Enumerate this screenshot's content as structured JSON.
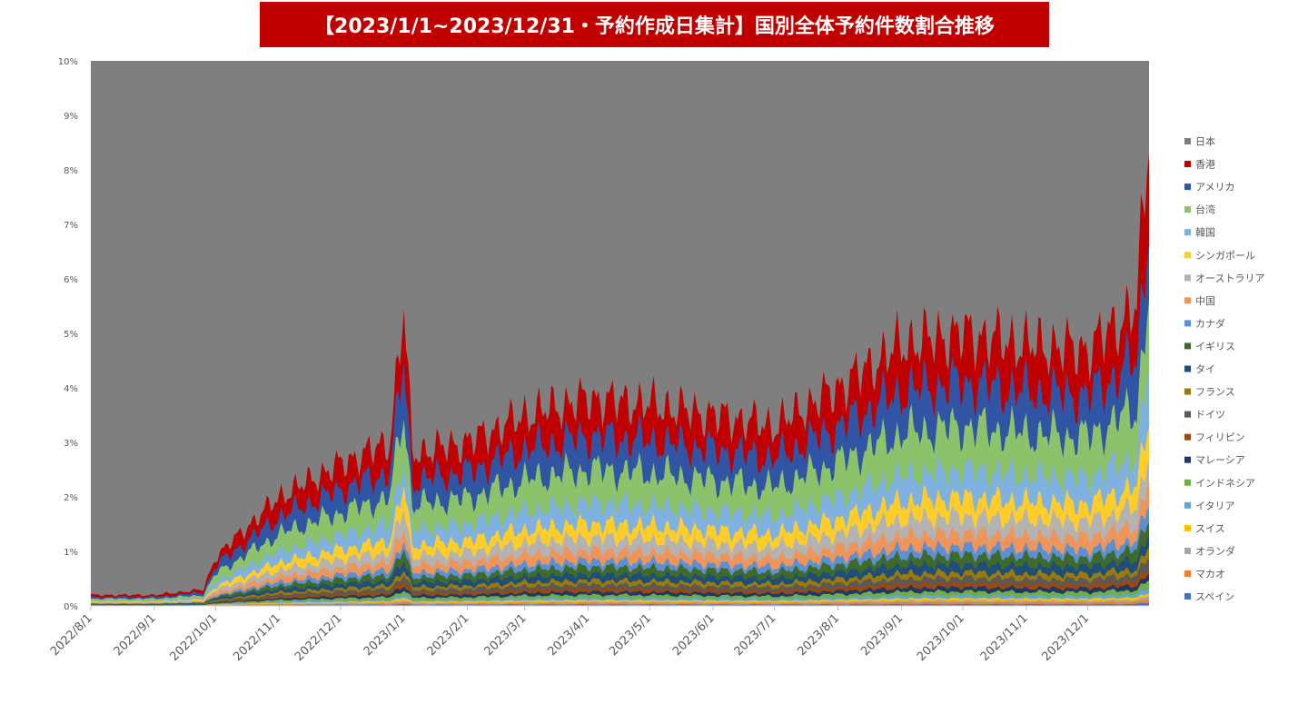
{
  "chart_data": {
    "type": "area",
    "stacked": true,
    "title": "【2023/1/1~2023/12/31・予約作成日集計】国別全体予約件数割合推移",
    "xlabel": "",
    "ylabel": "",
    "ylim": [
      0,
      10
    ],
    "y_ticks": [
      "0%",
      "1%",
      "2%",
      "3%",
      "4%",
      "5%",
      "6%",
      "7%",
      "8%",
      "9%",
      "10%"
    ],
    "x_ticks": [
      "2022/8/1",
      "2022/9/1",
      "2022/10/1",
      "2022/11/1",
      "2022/12/1",
      "2023/1/1",
      "2023/2/1",
      "2023/3/1",
      "2023/4/1",
      "2023/5/1",
      "2023/6/1",
      "2023/7/1",
      "2023/8/1",
      "2023/9/1",
      "2023/10/1",
      "2023/11/1",
      "2023/12/1"
    ],
    "x_range": [
      "2022/8/1",
      "2023/12/31"
    ],
    "legend_position": "right",
    "grid": false,
    "cumulative_top_percent": {
      "x": [
        "2022/8/1",
        "2022/9/1",
        "2022/9/25",
        "2022/10/1",
        "2022/11/1",
        "2022/12/1",
        "2022/12/25",
        "2023/1/1",
        "2023/1/5",
        "2023/2/1",
        "2023/3/1",
        "2023/4/1",
        "2023/5/1",
        "2023/6/1",
        "2023/7/1",
        "2023/8/1",
        "2023/9/1",
        "2023/10/1",
        "2023/11/1",
        "2023/12/1",
        "2023/12/25",
        "2023/12/31"
      ],
      "values": [
        0.2,
        0.2,
        0.3,
        0.9,
        2.0,
        2.6,
        3.0,
        5.5,
        2.8,
        3.0,
        3.5,
        3.8,
        3.7,
        3.5,
        3.3,
        4.0,
        4.8,
        5.0,
        4.8,
        4.7,
        5.5,
        8.8
      ]
    },
    "series": [
      {
        "name": "日本",
        "color": "#7f7f7f"
      },
      {
        "name": "香港",
        "color": "#c00000",
        "share": 0.18
      },
      {
        "name": "アメリカ",
        "color": "#2f55a4",
        "share": 0.16
      },
      {
        "name": "台湾",
        "color": "#8cc36a",
        "share": 0.16
      },
      {
        "name": "韓国",
        "color": "#7fb2e0",
        "share": 0.1
      },
      {
        "name": "シンガポール",
        "color": "#ffcd2a",
        "share": 0.07
      },
      {
        "name": "オーストラリア",
        "color": "#b3b3b3",
        "share": 0.06
      },
      {
        "name": "中国",
        "color": "#f0955a",
        "share": 0.05
      },
      {
        "name": "カナダ",
        "color": "#5b8fd6",
        "share": 0.03
      },
      {
        "name": "イギリス",
        "color": "#3f6b2a",
        "share": 0.035
      },
      {
        "name": "タイ",
        "color": "#1f4e79",
        "share": 0.03
      },
      {
        "name": "フランス",
        "color": "#9a7b0a",
        "share": 0.02
      },
      {
        "name": "ドイツ",
        "color": "#595959",
        "share": 0.02
      },
      {
        "name": "フィリピン",
        "color": "#9e480e",
        "share": 0.015
      },
      {
        "name": "マレーシア",
        "color": "#203864",
        "share": 0.015
      },
      {
        "name": "インドネシア",
        "color": "#70ad47",
        "share": 0.015
      },
      {
        "name": "イタリア",
        "color": "#5ca7e0",
        "share": 0.01
      },
      {
        "name": "スイス",
        "color": "#ffc000",
        "share": 0.008
      },
      {
        "name": "オランダ",
        "color": "#a5a5a5",
        "share": 0.007
      },
      {
        "name": "マカオ",
        "color": "#ed7d31",
        "share": 0.007
      },
      {
        "name": "スペイン",
        "color": "#4472c4",
        "share": 0.006
      }
    ]
  }
}
